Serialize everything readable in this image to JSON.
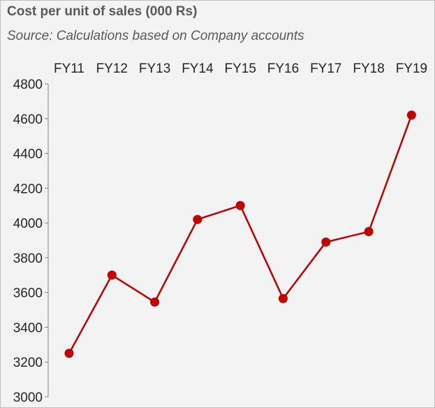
{
  "chart_data": {
    "type": "line",
    "title": "Cost per unit of sales (000 Rs)",
    "subtitle": "Source: Calculations based on Company accounts",
    "categories": [
      "FY11",
      "FY12",
      "FY13",
      "FY14",
      "FY15",
      "FY16",
      "FY17",
      "FY18",
      "FY19"
    ],
    "series": [
      {
        "values": [
          3250,
          3700,
          3545,
          4020,
          4100,
          3565,
          3890,
          3950,
          4620
        ],
        "color": "#c00000"
      }
    ],
    "ylim": [
      3000,
      4800
    ],
    "yticks": [
      3000,
      3200,
      3400,
      3600,
      3800,
      4000,
      4200,
      4400,
      4600,
      4800
    ],
    "ytick_labels": [
      "3000",
      "3200",
      "3400",
      "3600",
      "3800",
      "4000",
      "4200",
      "4400",
      "4600",
      "4800"
    ],
    "xaxis_position": "top",
    "grid": false,
    "legend": "none"
  },
  "colors": {
    "background": "#f3f3f3",
    "series": "#c00000",
    "axis": "#868686",
    "text": "#262626",
    "title": "#595959"
  }
}
